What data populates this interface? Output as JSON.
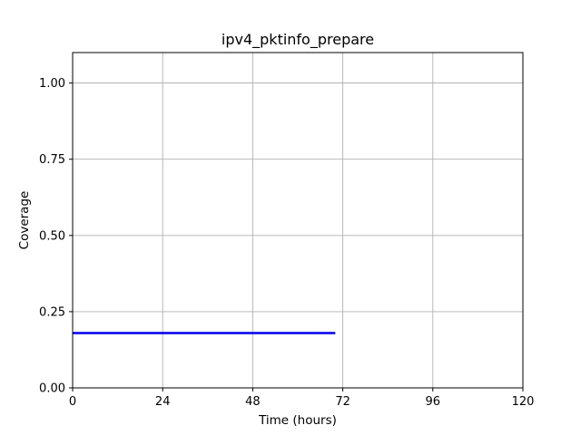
{
  "chart_data": {
    "type": "line",
    "title": "ipv4_pktinfo_prepare",
    "xlabel": "Time (hours)",
    "ylabel": "Coverage",
    "xlim": [
      0,
      120
    ],
    "ylim": [
      0,
      1.1
    ],
    "xticks": [
      0,
      24,
      48,
      72,
      96,
      120
    ],
    "xtick_labels": [
      "0",
      "24",
      "48",
      "72",
      "96",
      "120"
    ],
    "yticks": [
      0,
      0.25,
      0.5,
      0.75,
      1.0
    ],
    "ytick_labels": [
      "0.00",
      "0.25",
      "0.50",
      "0.75",
      "1.00"
    ],
    "grid": true,
    "legend": "none",
    "series": [
      {
        "color": "#0000ee",
        "x": [
          0,
          70
        ],
        "y": [
          0.18,
          0.18
        ]
      }
    ]
  }
}
